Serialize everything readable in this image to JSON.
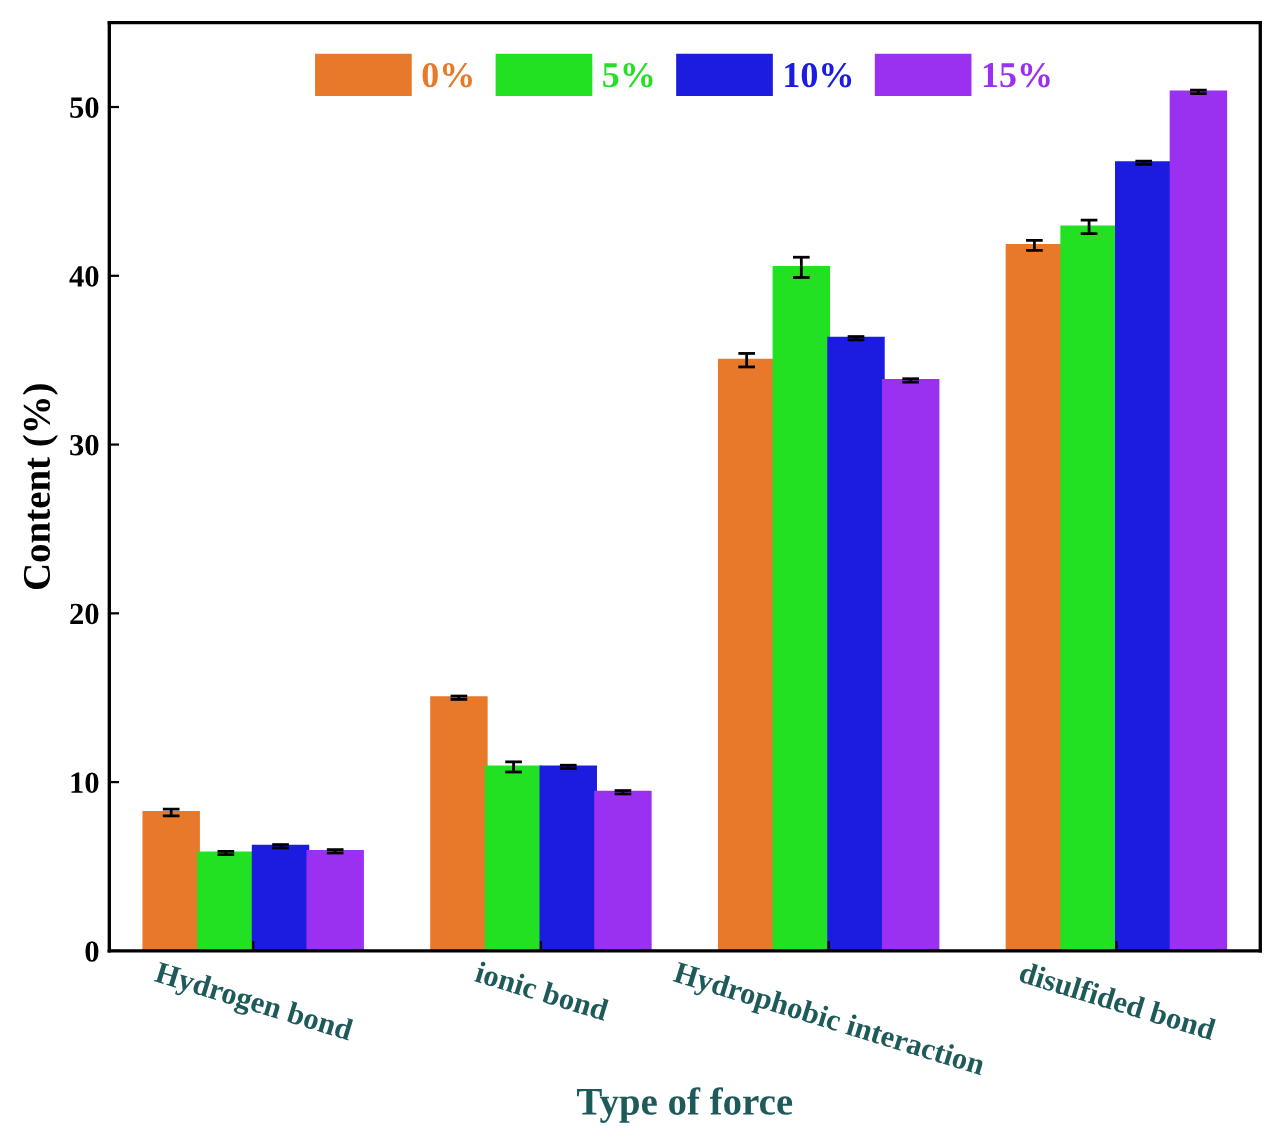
{
  "chart_data": {
    "type": "bar",
    "xlabel": "Type of force",
    "ylabel": "Content (%)",
    "categories": [
      "Hydrogen bond",
      "ionic bond",
      "Hydrophobic interaction",
      "disulfided bond"
    ],
    "series": [
      {
        "name": "0%",
        "color": "#e8782a",
        "values": [
          8.2,
          15.0,
          35.0,
          41.8
        ],
        "errors": [
          0.2,
          0.1,
          0.4,
          0.3
        ]
      },
      {
        "name": "5%",
        "color": "#22e022",
        "values": [
          5.8,
          10.9,
          40.5,
          42.9
        ],
        "errors": [
          0.1,
          0.3,
          0.6,
          0.4
        ]
      },
      {
        "name": "10%",
        "color": "#1c1ce0",
        "values": [
          6.2,
          10.9,
          36.3,
          46.7
        ],
        "errors": [
          0.1,
          0.1,
          0.1,
          0.1
        ]
      },
      {
        "name": "15%",
        "color": "#9a30f0",
        "values": [
          5.9,
          9.4,
          33.8,
          50.9
        ],
        "errors": [
          0.1,
          0.1,
          0.1,
          0.1
        ]
      }
    ],
    "ylim": [
      0,
      55
    ],
    "yticks": [
      0,
      10,
      20,
      30,
      40,
      50
    ],
    "grid": false,
    "legend": "top"
  }
}
